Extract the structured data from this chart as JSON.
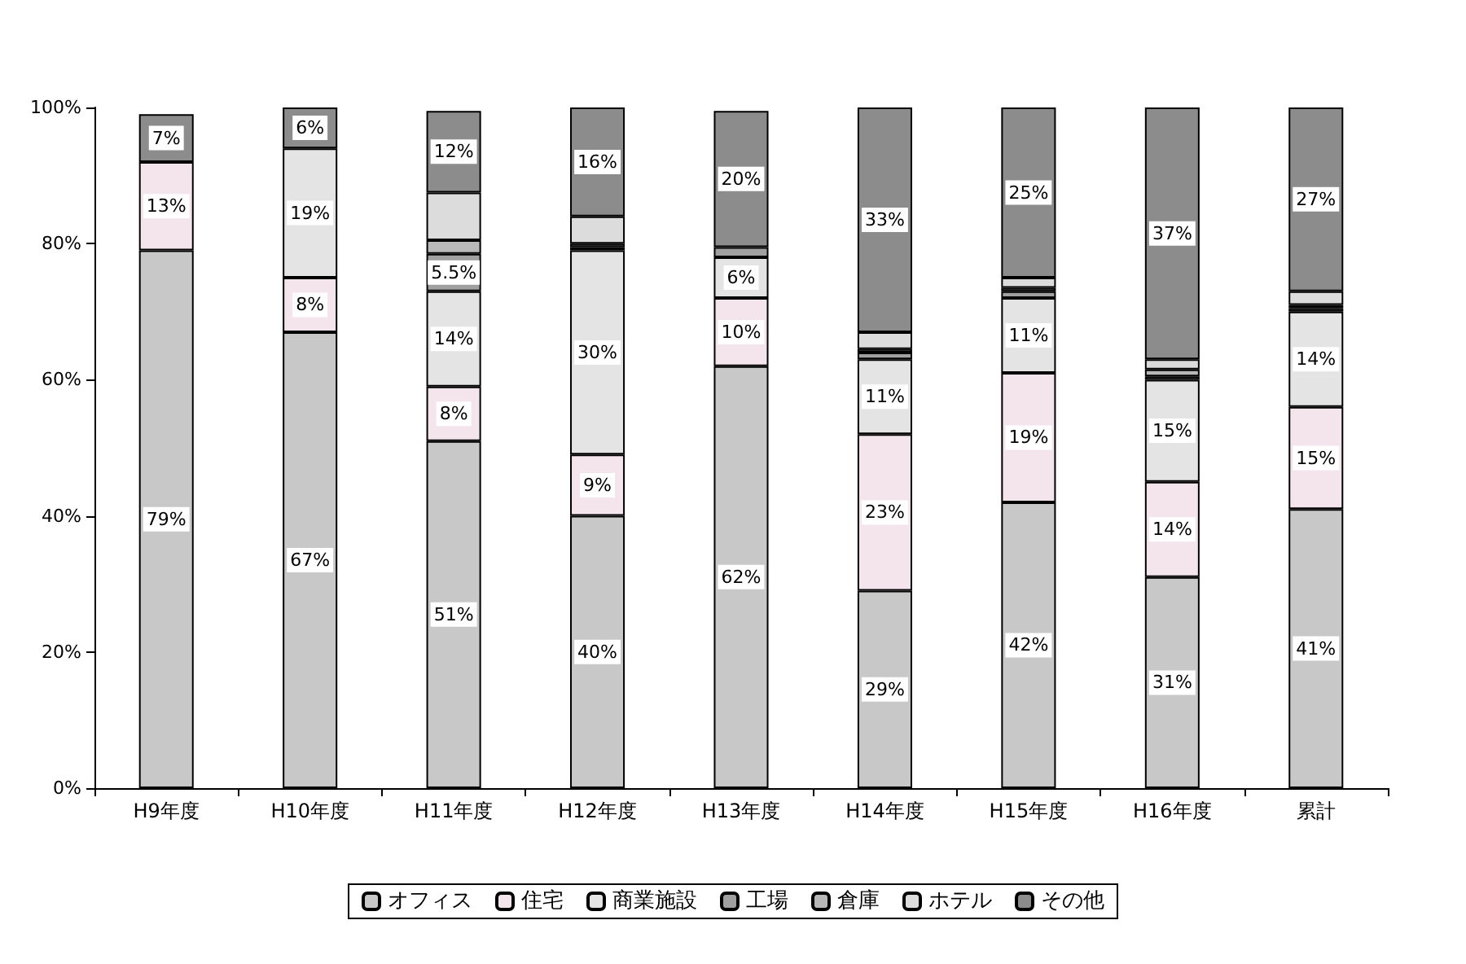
{
  "chart_data": {
    "type": "bar",
    "stacked": true,
    "categories": [
      "H9年度",
      "H10年度",
      "H11年度",
      "H12年度",
      "H13年度",
      "H14年度",
      "H15年度",
      "H16年度",
      "累計"
    ],
    "series": [
      {
        "name": "オフィス",
        "color": "#c8c8c8",
        "values": [
          79,
          67,
          51,
          40,
          62,
          29,
          42,
          31,
          41
        ],
        "value_labels": [
          "79%",
          "67%",
          "51%",
          "40%",
          "62%",
          "29%",
          "42%",
          "31%",
          "41%"
        ]
      },
      {
        "name": "住宅",
        "color": "#f4e4ec",
        "values": [
          13,
          8,
          8,
          9,
          10,
          23,
          19,
          14,
          15
        ],
        "value_labels": [
          "13%",
          "8%",
          "8%",
          "9%",
          "10%",
          "23%",
          "19%",
          "14%",
          "15%"
        ]
      },
      {
        "name": "商業施設",
        "color": "#e4e4e4",
        "values": [
          0,
          19,
          14,
          30,
          6,
          11,
          11,
          15,
          14
        ],
        "value_labels": [
          null,
          "19%",
          "14%",
          "30%",
          "6%",
          "11%",
          "11%",
          "15%",
          "14%"
        ]
      },
      {
        "name": "工場",
        "color": "#a0a0a0",
        "values": [
          0,
          0,
          5.5,
          0.5,
          1.5,
          1,
          1,
          0.5,
          0.5
        ],
        "value_labels": [
          null,
          null,
          "5.5%",
          null,
          null,
          null,
          null,
          null,
          null
        ]
      },
      {
        "name": "倉庫",
        "color": "#b8b8b8",
        "values": [
          0,
          0,
          2,
          0.5,
          0,
          0.5,
          0.5,
          1,
          0.5
        ],
        "value_labels": [
          null,
          null,
          null,
          null,
          null,
          null,
          null,
          null,
          null
        ]
      },
      {
        "name": "ホテル",
        "color": "#dcdcdc",
        "values": [
          0,
          0,
          7,
          4,
          0,
          2.5,
          1.5,
          1.5,
          2
        ],
        "value_labels": [
          null,
          null,
          null,
          null,
          null,
          null,
          null,
          null,
          null
        ]
      },
      {
        "name": "その他",
        "color": "#8c8c8c",
        "values": [
          7,
          6,
          12,
          16,
          20,
          33,
          25,
          37,
          27
        ],
        "value_labels": [
          "7%",
          "6%",
          "12%",
          "16%",
          "20%",
          "33%",
          "25%",
          "37%",
          "27%"
        ]
      }
    ],
    "ylim": [
      0,
      100
    ],
    "yticks": [
      {
        "value": 0,
        "label": "0%"
      },
      {
        "value": 20,
        "label": "20%"
      },
      {
        "value": 40,
        "label": "40%"
      },
      {
        "value": 60,
        "label": "60%"
      },
      {
        "value": 80,
        "label": "80%"
      },
      {
        "value": 100,
        "label": "100%"
      }
    ],
    "grid": false,
    "legend": "bottom"
  }
}
